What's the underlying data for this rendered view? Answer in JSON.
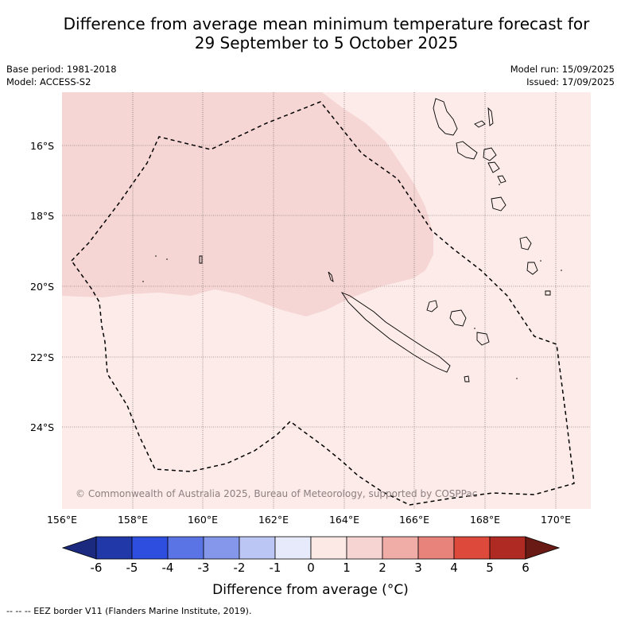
{
  "title_line1": "Difference from average mean minimum temperature forecast for",
  "title_line2": "29 September to 5 October 2025",
  "meta_left": [
    "Base period: 1981-2018",
    "Model: ACCESS-S2"
  ],
  "meta_right": [
    "Model run: 15/09/2025",
    "Issued: 17/09/2025"
  ],
  "lat_labels": [
    "16°S",
    "18°S",
    "20°S",
    "22°S",
    "24°S"
  ],
  "lon_labels": [
    "156°E",
    "158°E",
    "160°E",
    "162°E",
    "164°E",
    "166°E",
    "168°E",
    "170°E"
  ],
  "copyright": "© Commonwealth of Australia 2025, Bureau of Meteorology, supported by COSPPac",
  "colorbar": {
    "ticks": [
      "-6",
      "-5",
      "-4",
      "-3",
      "-2",
      "-1",
      "0",
      "1",
      "2",
      "3",
      "4",
      "5",
      "6"
    ],
    "colors": [
      "#2038a8",
      "#2e4ee0",
      "#5a74e6",
      "#8497ea",
      "#bcc6f4",
      "#e6eafa",
      "#fce9e6",
      "#f6d4d1",
      "#f0aca7",
      "#e8837c",
      "#dd4a3c",
      "#ae2a22"
    ],
    "under_color": "#1b2a7e",
    "over_color": "#6a1a14",
    "label": "Difference from average (",
    "label_unit": "°C)"
  },
  "map_colors": {
    "background": "#fcebe9",
    "warm_area": "#f6d6d4"
  },
  "footer": "-- -- -- EEZ border V11 (Flanders Marine Institute, 2019)."
}
